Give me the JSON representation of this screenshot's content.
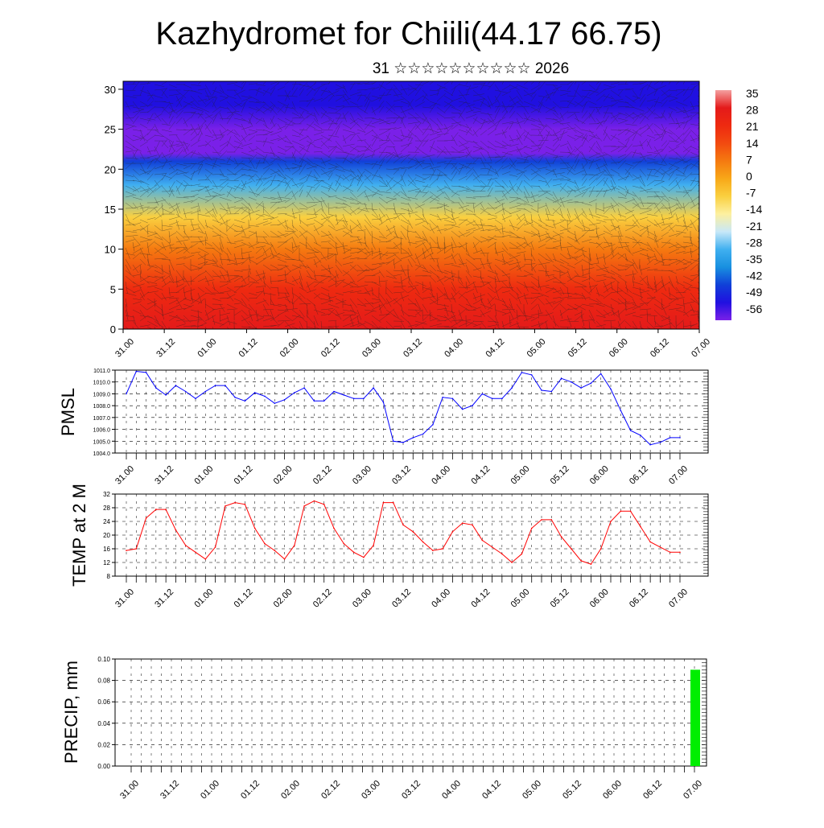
{
  "header": {
    "title": "Kazhydromet for Chiili(44.17 66.75)",
    "subtitle": "31 ☆☆☆☆☆☆☆☆☆☆ 2026"
  },
  "colors": {
    "pmsl_line": "#0000ff",
    "temp_line": "#ff0000",
    "precip_bar": "#00ee00",
    "grid": "#000000"
  },
  "chart_data": [
    {
      "type": "heatmap",
      "name": "cross-section",
      "title": "",
      "ylabel": "",
      "ylim": [
        0,
        31
      ],
      "yticks": [
        0,
        5,
        10,
        15,
        20,
        25,
        30
      ],
      "xticks": [
        "31.00",
        "31.12",
        "01.00",
        "01.12",
        "02.00",
        "02.12",
        "03.00",
        "03.12",
        "04.00",
        "04.12",
        "05.00",
        "05.12",
        "06.00",
        "06.12",
        "07.00"
      ],
      "colorbar": {
        "labels": [
          "35",
          "28",
          "21",
          "14",
          "7",
          "0",
          "-7",
          "-14",
          "-21",
          "-28",
          "-35",
          "-42",
          "-49",
          "-56"
        ],
        "colors": [
          "#f4a0a0",
          "#e41a1a",
          "#ee2a10",
          "#f24a10",
          "#f57a10",
          "#f8a818",
          "#fad040",
          "#fdf0a0",
          "#c8e8f8",
          "#40b0f0",
          "#1890e0",
          "#1040d8",
          "#2010e0",
          "#7a20e8"
        ]
      },
      "temperature_profile": [
        {
          "level": 0,
          "value": 30
        },
        {
          "level": 5,
          "value": 20
        },
        {
          "level": 10,
          "value": 8
        },
        {
          "level": 14,
          "value": -7
        },
        {
          "level": 18,
          "value": -25
        },
        {
          "level": 21,
          "value": -42
        },
        {
          "level": 22,
          "value": -55
        },
        {
          "level": 25,
          "value": -58
        },
        {
          "level": 28,
          "value": -52
        },
        {
          "level": 31,
          "value": -50
        }
      ]
    },
    {
      "type": "line",
      "name": "pmsl",
      "ylabel": "PMSL",
      "ylim": [
        1004.0,
        1011.0
      ],
      "yticks": [
        "1004.0",
        "1005.0",
        "1006.0",
        "1007.0",
        "1008.0",
        "1009.0",
        "1010.0",
        "1011.0"
      ],
      "xticks": [
        "31.00",
        "31.12",
        "01.00",
        "01.12",
        "02.00",
        "02.12",
        "03.00",
        "03.12",
        "04.00",
        "04.12",
        "05.00",
        "05.12",
        "06.00",
        "06.12",
        "07.00"
      ],
      "x": [
        0,
        3,
        6,
        9,
        12,
        15,
        18,
        21,
        24,
        27,
        30,
        33,
        36,
        39,
        42,
        45,
        48,
        51,
        54,
        57,
        60,
        63,
        66,
        69,
        72,
        75,
        78,
        81,
        84,
        87,
        90,
        93,
        96,
        99,
        102,
        105,
        108,
        111,
        114,
        117,
        120,
        123,
        126,
        129,
        132,
        135,
        138,
        141,
        144,
        147,
        150,
        153,
        156,
        159,
        162,
        165,
        168
      ],
      "values": [
        1009.0,
        1010.9,
        1010.8,
        1009.5,
        1008.9,
        1009.7,
        1009.2,
        1008.6,
        1009.2,
        1009.7,
        1009.7,
        1008.7,
        1008.4,
        1009.1,
        1008.8,
        1008.2,
        1008.5,
        1009.1,
        1009.5,
        1008.4,
        1008.4,
        1009.2,
        1008.9,
        1008.6,
        1008.6,
        1009.5,
        1008.3,
        1005.0,
        1004.9,
        1005.3,
        1005.6,
        1006.4,
        1008.7,
        1008.6,
        1007.7,
        1008.0,
        1009.0,
        1008.6,
        1008.6,
        1009.5,
        1010.8,
        1010.6,
        1009.3,
        1009.2,
        1010.3,
        1010.0,
        1009.5,
        1009.9,
        1010.7,
        1009.4,
        1007.6,
        1005.9,
        1005.5,
        1004.7,
        1004.9,
        1005.3,
        1005.3
      ],
      "ylim_display": [
        1004.0,
        1011.0
      ]
    },
    {
      "type": "line",
      "name": "temp2m",
      "ylabel": "TEMP at 2 M",
      "ylim": [
        8,
        32
      ],
      "yticks": [
        "8",
        "12",
        "16",
        "20",
        "24",
        "28",
        "32"
      ],
      "xticks": [
        "31.00",
        "31.12",
        "01.00",
        "01.12",
        "02.00",
        "02.12",
        "03.00",
        "03.12",
        "04.00",
        "04.12",
        "05.00",
        "05.12",
        "06.00",
        "06.12",
        "07.00"
      ],
      "x": [
        0,
        3,
        6,
        9,
        12,
        15,
        18,
        21,
        24,
        27,
        30,
        33,
        36,
        39,
        42,
        45,
        48,
        51,
        54,
        57,
        60,
        63,
        66,
        69,
        72,
        75,
        78,
        81,
        84,
        87,
        90,
        93,
        96,
        99,
        102,
        105,
        108,
        111,
        114,
        117,
        120,
        123,
        126,
        129,
        132,
        135,
        138,
        141,
        144,
        147,
        150,
        153,
        156,
        159,
        162,
        165,
        168
      ],
      "values": [
        15.5,
        16.0,
        25.0,
        27.5,
        27.5,
        21.5,
        17.0,
        15.0,
        13.0,
        16.5,
        28.5,
        29.5,
        29.0,
        22.0,
        17.5,
        15.5,
        13.0,
        17.0,
        28.5,
        30.0,
        29.0,
        22.0,
        17.5,
        15.0,
        13.5,
        17.0,
        29.5,
        29.5,
        23.0,
        21.0,
        18.0,
        15.5,
        16.0,
        21.0,
        23.5,
        23.0,
        18.5,
        16.5,
        14.5,
        12.0,
        14.5,
        22.0,
        24.5,
        24.5,
        19.5,
        16.0,
        12.5,
        11.5,
        16.0,
        24.0,
        27.0,
        27.0,
        22.5,
        18.0,
        16.5,
        15.0,
        15.0
      ]
    },
    {
      "type": "bar",
      "name": "precip",
      "ylabel": "PRECIP, mm",
      "ylim": [
        0,
        0.1
      ],
      "yticks": [
        "0.00",
        "0.02",
        "0.04",
        "0.06",
        "0.08",
        "0.10"
      ],
      "xticks": [
        "31.00",
        "31.12",
        "01.00",
        "01.12",
        "02.00",
        "02.12",
        "03.00",
        "03.12",
        "04.00",
        "04.12",
        "05.00",
        "05.12",
        "06.00",
        "06.12",
        "07.00"
      ],
      "bars": [
        {
          "x": 168,
          "value": 0.09
        }
      ]
    }
  ]
}
